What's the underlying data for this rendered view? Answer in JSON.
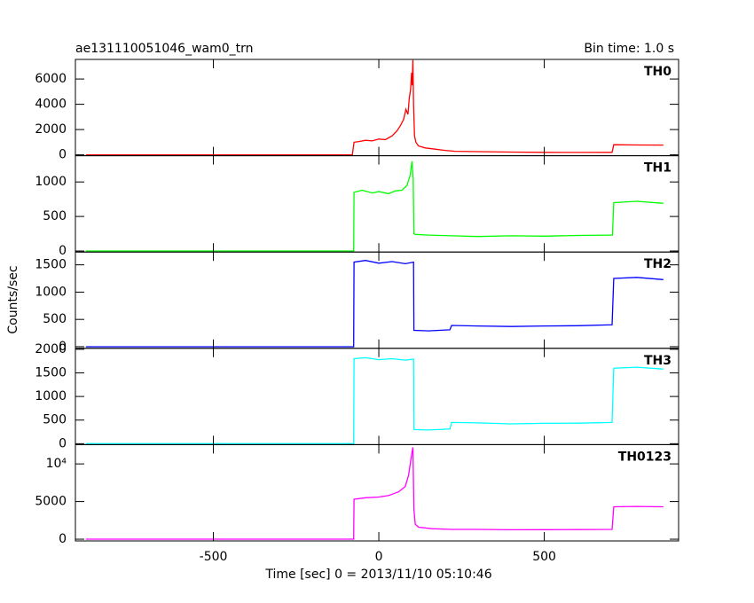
{
  "title": "ae131110051046_wam0_trn",
  "subtitle": "Bin time: 1.0 s",
  "ylabel": "Counts/sec",
  "xlabel": "Time [sec] 0 = 2013/11/10 05:10:46",
  "xlim": [
    -917,
    906
  ],
  "xticks": [
    -500,
    0,
    500
  ],
  "chart_data": [
    {
      "type": "line",
      "label": "TH0",
      "color": "#ff0000",
      "x": [
        -885,
        -80,
        -75,
        -60,
        -40,
        -20,
        0,
        20,
        40,
        55,
        65,
        75,
        82,
        88,
        92,
        96,
        99,
        101,
        103,
        105,
        108,
        112,
        120,
        140,
        170,
        200,
        230,
        300,
        400,
        500,
        600,
        700,
        705,
        710,
        780,
        860
      ],
      "values": [
        0,
        0,
        1000,
        1050,
        1150,
        1100,
        1250,
        1200,
        1500,
        1900,
        2300,
        2800,
        3600,
        3200,
        4500,
        5200,
        6500,
        5500,
        7500,
        4000,
        1500,
        1000,
        700,
        550,
        450,
        350,
        280,
        250,
        220,
        200,
        190,
        200,
        200,
        800,
        780,
        770
      ],
      "ylim": [
        -70,
        7550
      ],
      "yticks": [
        0,
        2000,
        4000,
        6000
      ]
    },
    {
      "type": "line",
      "label": "TH1",
      "color": "#00ff00",
      "x": [
        -885,
        -76,
        -75,
        -50,
        -20,
        0,
        30,
        50,
        70,
        85,
        95,
        100,
        104,
        106,
        110,
        150,
        220,
        300,
        400,
        500,
        600,
        700,
        706,
        710,
        780,
        860
      ],
      "values": [
        0,
        0,
        850,
        880,
        840,
        860,
        830,
        870,
        880,
        950,
        1100,
        1300,
        1050,
        250,
        240,
        230,
        220,
        210,
        220,
        215,
        225,
        230,
        230,
        700,
        720,
        690
      ],
      "ylim": [
        -15,
        1380
      ],
      "yticks": [
        0,
        500,
        1000
      ]
    },
    {
      "type": "line",
      "label": "TH2",
      "color": "#0000ff",
      "x": [
        -885,
        -76,
        -75,
        -40,
        0,
        40,
        80,
        105,
        106,
        150,
        215,
        220,
        300,
        400,
        500,
        600,
        705,
        710,
        780,
        860
      ],
      "values": [
        0,
        0,
        1550,
        1580,
        1530,
        1560,
        1520,
        1550,
        300,
        290,
        310,
        390,
        380,
        370,
        380,
        385,
        400,
        1250,
        1270,
        1230
      ],
      "ylim": [
        -30,
        1735
      ],
      "yticks": [
        0,
        500,
        1000,
        1500
      ]
    },
    {
      "type": "line",
      "label": "TH3",
      "color": "#00ffff",
      "x": [
        -885,
        -76,
        -75,
        -40,
        0,
        40,
        80,
        105,
        106,
        150,
        215,
        220,
        300,
        400,
        500,
        600,
        705,
        710,
        780,
        860
      ],
      "values": [
        0,
        0,
        1800,
        1820,
        1780,
        1800,
        1770,
        1790,
        300,
        290,
        310,
        450,
        440,
        420,
        430,
        435,
        450,
        1600,
        1620,
        1580
      ],
      "ylim": [
        -20,
        2020
      ],
      "yticks": [
        0,
        500,
        1000,
        1500,
        2000
      ]
    },
    {
      "type": "line",
      "label": "TH0123",
      "color": "#ff00ff",
      "x": [
        -885,
        -76,
        -75,
        -40,
        0,
        30,
        60,
        80,
        90,
        95,
        100,
        103,
        106,
        110,
        120,
        160,
        220,
        300,
        400,
        500,
        600,
        705,
        710,
        780,
        860
      ],
      "values": [
        0,
        0,
        5300,
        5500,
        5600,
        5800,
        6300,
        7000,
        8500,
        10000,
        11500,
        12200,
        4000,
        2000,
        1600,
        1400,
        1300,
        1300,
        1250,
        1260,
        1280,
        1300,
        4300,
        4350,
        4300
      ],
      "ylim": [
        -230,
        12560
      ],
      "yticks": [
        0,
        5000,
        {
          "value": 10000,
          "label": "10⁴"
        }
      ]
    }
  ]
}
